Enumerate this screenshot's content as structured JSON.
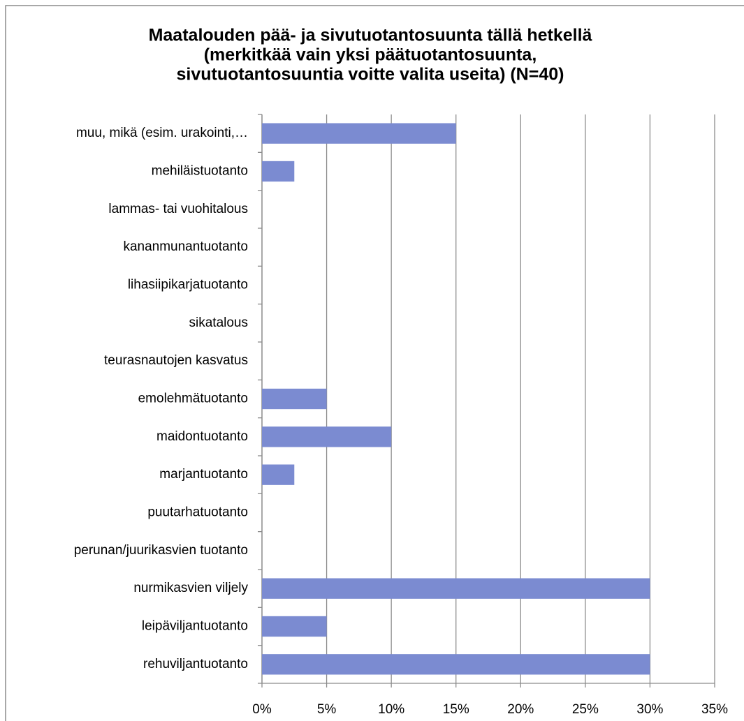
{
  "chart_data": {
    "type": "barh",
    "title": [
      "Maatalouden pää- ja sivutuotantosuunta tällä hetkellä",
      "(merkitkää vain yksi päätuotantosuunta,",
      "sivutuotantosuuntia voitte valita useita)    (N=40)"
    ],
    "categories": [
      "rehuviljantuotanto",
      "leipäviljantuotanto",
      "nurmikasvien viljely",
      "perunan/juurikasvien tuotanto",
      "puutarhatuotanto",
      "marjantuotanto",
      "maidontuotanto",
      "emolehmätuotanto",
      "teurasnautojen kasvatus",
      "sikatalous",
      "lihasiipikarjatuotanto",
      "kananmunantuotanto",
      "lammas- tai vuohitalous",
      "mehiläistuotanto",
      "muu, mikä (esim. urakointi,…"
    ],
    "values": [
      30,
      5,
      30,
      0,
      0,
      2.5,
      10,
      5,
      0,
      0,
      0,
      0,
      0,
      2.5,
      15
    ],
    "color": "#7b8bd1",
    "xlim": [
      0,
      35
    ],
    "xticks": [
      {
        "value": 0,
        "label": "0%"
      },
      {
        "value": 5,
        "label": "5%"
      },
      {
        "value": 10,
        "label": "10%"
      },
      {
        "value": 15,
        "label": "15%"
      },
      {
        "value": 20,
        "label": "20%"
      },
      {
        "value": 25,
        "label": "25%"
      },
      {
        "value": 30,
        "label": "30%"
      },
      {
        "value": 35,
        "label": "35%"
      }
    ],
    "grid": true
  }
}
